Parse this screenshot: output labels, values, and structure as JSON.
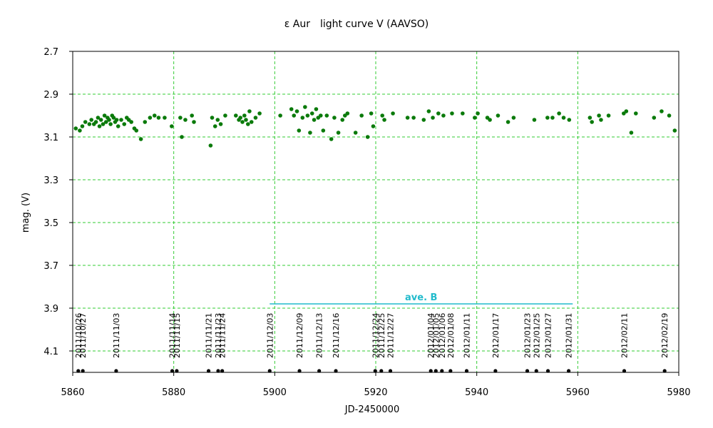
{
  "chart_data": {
    "type": "scatter",
    "title": "ε Aur　light curve V (AAVSO)",
    "xlabel": "JD-2450000",
    "ylabel": "mag. (V)",
    "xlim": [
      5860,
      5980
    ],
    "ylim": [
      2.7,
      4.2
    ],
    "y_inverted": true,
    "x_ticks": [
      "5860",
      "5880",
      "5900",
      "5920",
      "5940",
      "5960",
      "5980"
    ],
    "y_ticks": [
      "2.7",
      "2.9",
      "3.1",
      "3.3",
      "3.5",
      "3.7",
      "3.9",
      "4.1"
    ],
    "grid": true,
    "colors": {
      "points": "#0a7a0a",
      "grid": "#33cc33",
      "ave_line": "#22bbcc",
      "date_marker": "#000000",
      "frame": "#000000"
    },
    "series": [
      {
        "x": [
          5860.6,
          5861.4,
          5861.9,
          5862.5,
          5863.3,
          5863.7,
          5864.2,
          5864.6,
          5865.0,
          5865.3,
          5865.6,
          5866.0,
          5866.3,
          5866.6,
          5866.9,
          5867.2,
          5867.5,
          5867.8,
          5868.1,
          5868.4,
          5868.7,
          5869.0,
          5869.6,
          5870.2,
          5870.7,
          5871.1,
          5871.6,
          5872.2,
          5872.6,
          5873.5,
          5874.3,
          5875.3,
          5876.2,
          5877.0,
          5878.2,
          5879.6,
          5881.3,
          5881.6,
          5882.3,
          5883.6,
          5884.0,
          5887.3,
          5887.6,
          5888.2,
          5888.7,
          5889.3,
          5890.2,
          5892.3,
          5892.9,
          5893.2,
          5893.6,
          5894.0,
          5894.3,
          5894.7,
          5895.0,
          5895.4,
          5896.2,
          5897.0,
          5901.1,
          5903.3,
          5903.8,
          5904.4,
          5904.8,
          5905.5,
          5906.0,
          5906.5,
          5907.0,
          5907.4,
          5907.8,
          5908.2,
          5908.6,
          5909.1,
          5909.6,
          5910.3,
          5911.2,
          5911.8,
          5912.6,
          5913.4,
          5913.9,
          5914.4,
          5916.0,
          5917.2,
          5918.4,
          5919.1,
          5919.5,
          5921.3,
          5921.7,
          5923.4,
          5926.3,
          5927.5,
          5929.5,
          5930.5,
          5931.3,
          5932.4,
          5933.4,
          5935.1,
          5937.2,
          5939.6,
          5940.2,
          5942.1,
          5942.6,
          5944.2,
          5946.2,
          5947.3,
          5951.4,
          5954.0,
          5955.0,
          5956.3,
          5957.2,
          5958.3,
          5962.4,
          5962.8,
          5964.2,
          5964.6,
          5966.1,
          5969.1,
          5969.6,
          5970.6,
          5971.5,
          5975.1,
          5976.6,
          5978.1,
          5979.2
        ],
        "y": [
          3.06,
          3.07,
          3.05,
          3.03,
          3.04,
          3.02,
          3.04,
          3.03,
          3.01,
          3.05,
          3.02,
          3.04,
          3.0,
          3.03,
          3.01,
          3.02,
          3.04,
          3.0,
          3.01,
          3.03,
          3.02,
          3.05,
          3.02,
          3.04,
          3.01,
          3.02,
          3.03,
          3.06,
          3.07,
          3.11,
          3.03,
          3.01,
          3.0,
          3.01,
          3.01,
          3.05,
          3.01,
          3.1,
          3.02,
          3.0,
          3.03,
          3.14,
          3.01,
          3.05,
          3.02,
          3.04,
          3.0,
          3.0,
          3.02,
          3.01,
          3.03,
          3.0,
          3.02,
          3.04,
          2.98,
          3.03,
          3.01,
          2.99,
          3.0,
          2.97,
          3.0,
          2.98,
          3.07,
          3.01,
          2.96,
          3.0,
          3.08,
          2.99,
          3.02,
          2.97,
          3.01,
          3.0,
          3.07,
          3.0,
          3.11,
          3.01,
          3.08,
          3.02,
          3.0,
          2.99,
          3.08,
          3.0,
          3.1,
          2.99,
          3.05,
          3.0,
          3.02,
          2.99,
          3.01,
          3.01,
          3.02,
          2.98,
          3.01,
          2.99,
          3.0,
          2.99,
          2.99,
          3.01,
          2.99,
          3.01,
          3.02,
          3.0,
          3.03,
          3.01,
          3.02,
          3.01,
          3.01,
          2.99,
          3.01,
          3.02,
          3.01,
          3.03,
          3.0,
          3.02,
          3.0,
          2.99,
          2.98,
          3.08,
          2.99,
          3.01,
          2.98,
          3.0,
          3.07
        ]
      }
    ],
    "annotations": {
      "ave_label": "ave. B",
      "ave_x": [
        5899,
        5959
      ],
      "ave_y": 3.88,
      "dates": [
        {
          "x": 5861.1,
          "label": "2011/10/26"
        },
        {
          "x": 5862.0,
          "label": "2011/10/27"
        },
        {
          "x": 5868.6,
          "label": "2011/11/03"
        },
        {
          "x": 5879.7,
          "label": "2011/11/14"
        },
        {
          "x": 5880.6,
          "label": "2011/11/15"
        },
        {
          "x": 5886.9,
          "label": "2011/11/21"
        },
        {
          "x": 5888.8,
          "label": "2011/11/23"
        },
        {
          "x": 5889.6,
          "label": "2011/11/24"
        },
        {
          "x": 5899.0,
          "label": "2011/12/03"
        },
        {
          "x": 5904.9,
          "label": "2011/12/09"
        },
        {
          "x": 5908.8,
          "label": "2011/12/13"
        },
        {
          "x": 5912.1,
          "label": "2011/12/16"
        },
        {
          "x": 5919.9,
          "label": "2011/12/24"
        },
        {
          "x": 5921.1,
          "label": "2011/12/25"
        },
        {
          "x": 5922.9,
          "label": "2011/12/27"
        },
        {
          "x": 5930.9,
          "label": "2012/01/04"
        },
        {
          "x": 5931.9,
          "label": "2012/01/05"
        },
        {
          "x": 5933.1,
          "label": "2012/01/06"
        },
        {
          "x": 5934.8,
          "label": "2012/01/08"
        },
        {
          "x": 5938.0,
          "label": "2012/01/11"
        },
        {
          "x": 5943.7,
          "label": "2012/01/17"
        },
        {
          "x": 5950.0,
          "label": "2012/01/23"
        },
        {
          "x": 5951.8,
          "label": "2012/01/25"
        },
        {
          "x": 5954.1,
          "label": "2012/01/27"
        },
        {
          "x": 5958.2,
          "label": "2012/01/31"
        },
        {
          "x": 5969.2,
          "label": "2012/02/11"
        },
        {
          "x": 5977.2,
          "label": "2012/02/19"
        }
      ]
    }
  }
}
